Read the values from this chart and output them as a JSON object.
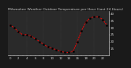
{
  "title": "Milwaukee Weather Outdoor Temperature per Hour (Last 24 Hours)",
  "hours": [
    0,
    1,
    2,
    3,
    4,
    5,
    6,
    7,
    8,
    9,
    10,
    11,
    12,
    13,
    14,
    15,
    16,
    17,
    18,
    19,
    20,
    21,
    22,
    23
  ],
  "temps": [
    32,
    30,
    27,
    25,
    25,
    24,
    22,
    20,
    18,
    16,
    15,
    14,
    13,
    12,
    12,
    13,
    20,
    28,
    34,
    37,
    38,
    38,
    36,
    32
  ],
  "line_color": "#ff0000",
  "marker_color": "#000000",
  "bg_color": "#1a1a1a",
  "plot_bg": "#2a2a2a",
  "grid_color": "#555555",
  "text_color": "#cccccc",
  "ylim": [
    10,
    42
  ],
  "ytick_values": [
    15,
    20,
    25,
    30,
    35,
    40
  ],
  "ylabel_fontsize": 3.0,
  "xlabel_fontsize": 2.8,
  "title_fontsize": 3.2,
  "linewidth": 0.7,
  "markersize": 1.5
}
